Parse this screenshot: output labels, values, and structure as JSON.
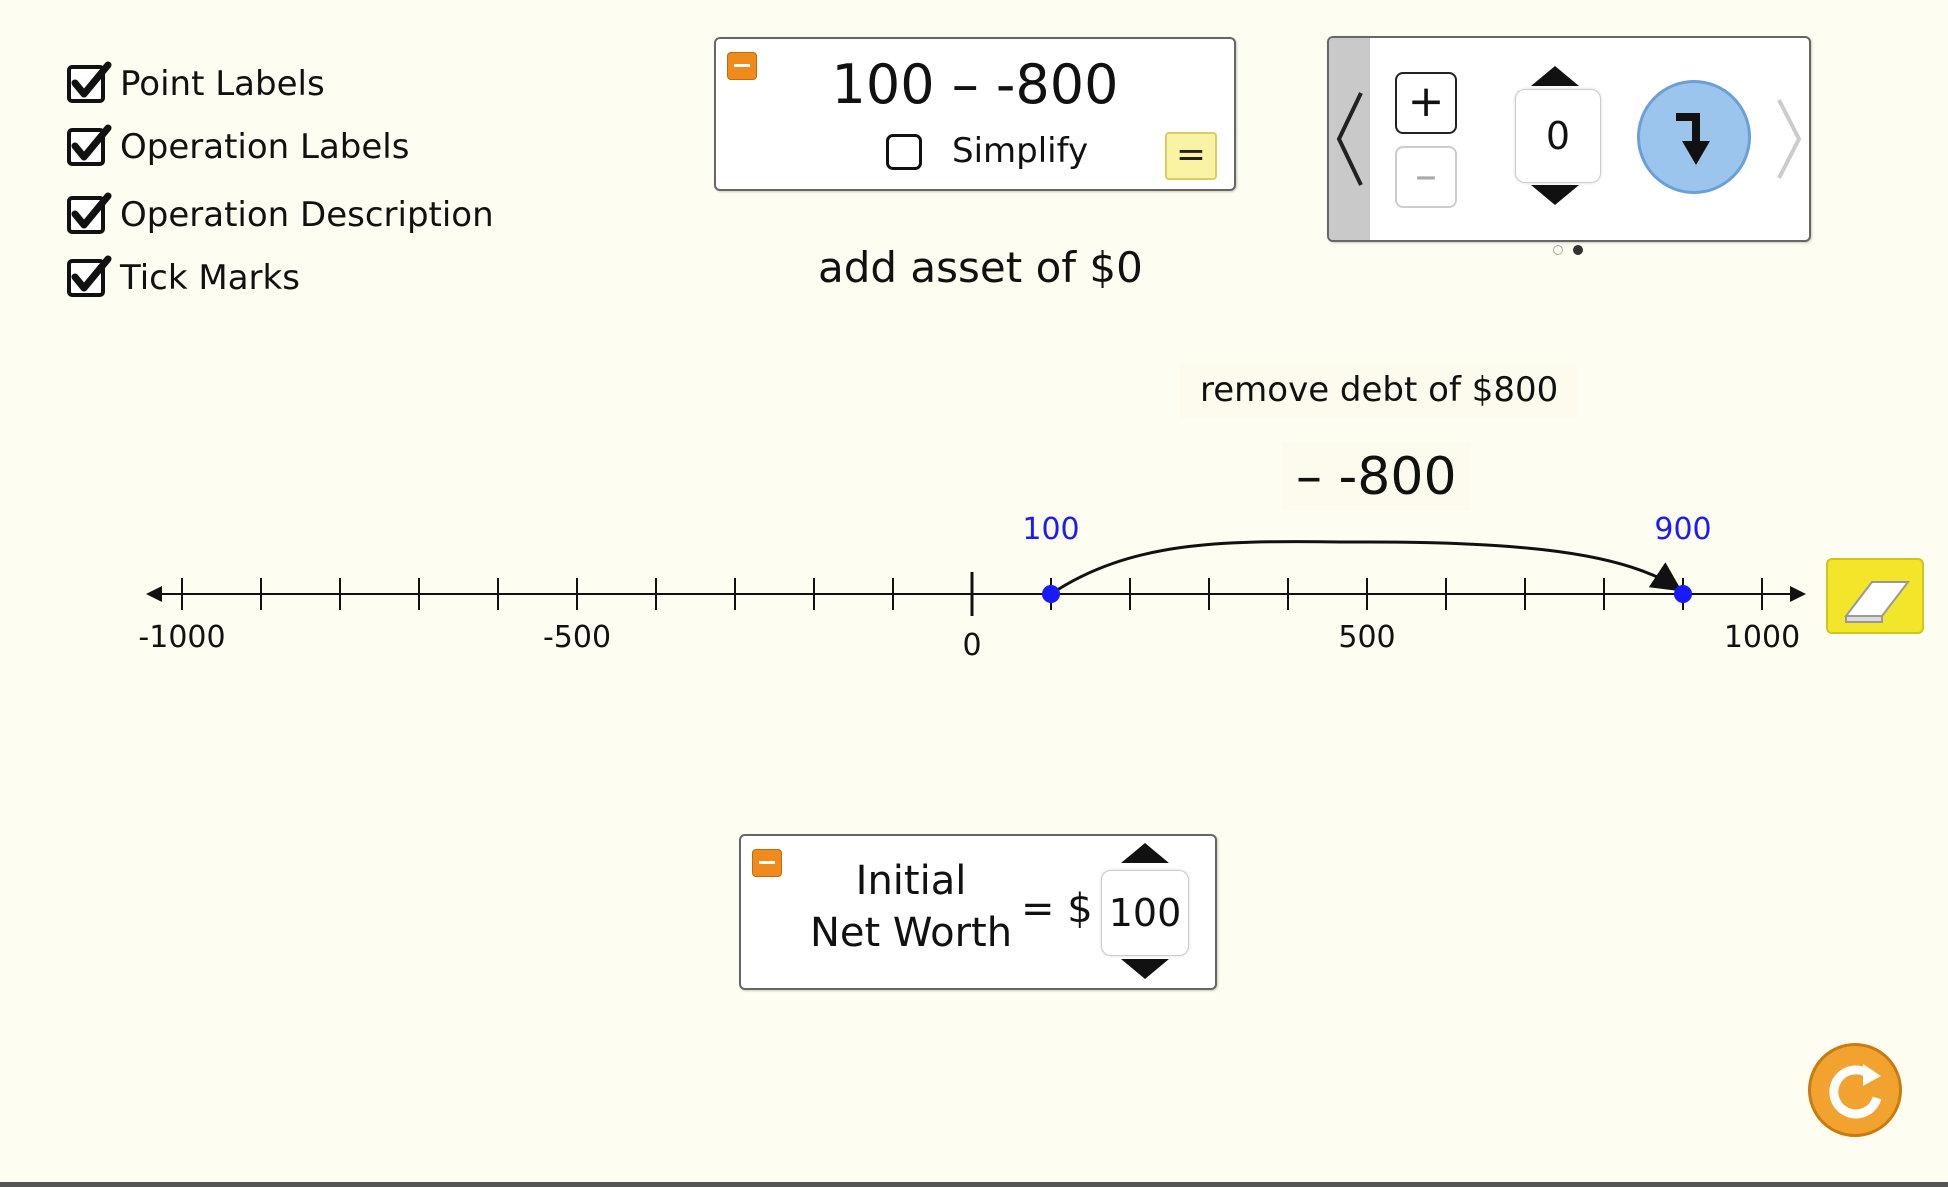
{
  "options": {
    "items": [
      {
        "label": "Point Labels",
        "checked": true
      },
      {
        "label": "Operation Labels",
        "checked": true
      },
      {
        "label": "Operation Description",
        "checked": true
      },
      {
        "label": "Tick Marks",
        "checked": true
      }
    ]
  },
  "expression": {
    "text": "100 – -800",
    "simplify_label": "Simplify",
    "simplify_checked": false,
    "equals_label": "="
  },
  "operation_description": "add asset of $0",
  "operator_panel": {
    "plus_label": "+",
    "minus_label": "–",
    "value": "0"
  },
  "number_line": {
    "min": -1000,
    "max": 1000,
    "tick_step": 100,
    "labels": [
      "-1000",
      "-500",
      "0",
      "500",
      "1000"
    ],
    "start_point": {
      "value": 100,
      "label": "100"
    },
    "end_point": {
      "value": 900,
      "label": "900"
    },
    "operation_label": "– -800",
    "operation_description": "remove debt of $800",
    "point_color": "#1a1aff"
  },
  "initial_net_worth": {
    "title_line1": "Initial",
    "title_line2": "Net Worth",
    "equals_label": "= $",
    "value": "100"
  },
  "colors": {
    "background": "#fefdf1",
    "accent_orange": "#ef8b1d",
    "eraser_yellow": "#f3e52a",
    "step_button_blue": "#9cc5ee"
  }
}
